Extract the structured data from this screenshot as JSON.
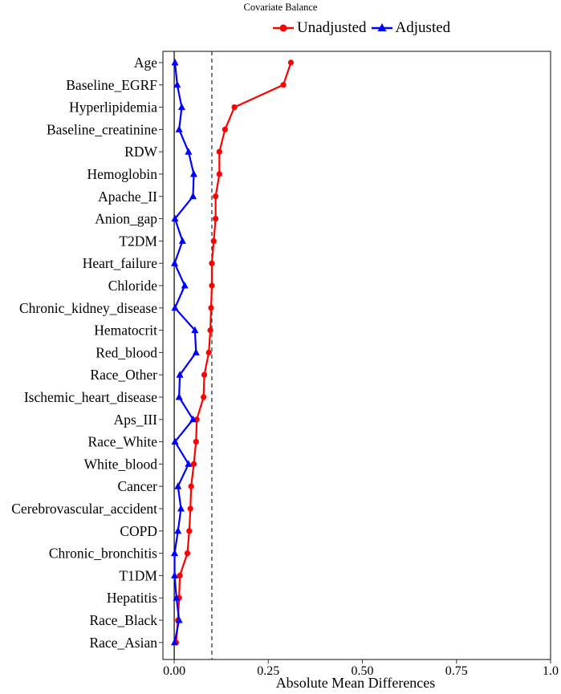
{
  "chart_data": {
    "type": "line",
    "title": "Covariate Balance",
    "xlabel": "Absolute Mean Differences",
    "ylabel": "",
    "xlim": [
      -0.03,
      1.0
    ],
    "xticks": [
      "0.00",
      "0.25",
      "0.50",
      "0.75",
      "1.0"
    ],
    "xtick_values": [
      0,
      0.25,
      0.5,
      0.75,
      1.0
    ],
    "threshold": 0.1,
    "zero_line": 0,
    "legend_position": "top",
    "grid": false,
    "categories": [
      "Age",
      "Baseline_EGRF",
      "Hyperlipidemia",
      "Baseline_creatinine",
      "RDW",
      "Hemoglobin",
      "Apache_II",
      "Anion_gap",
      "T2DM",
      "Heart_failure",
      "Chloride",
      "Chronic_kidney_disease",
      "Hematocrit",
      "Red_blood",
      "Race_Other",
      "Ischemic_heart_disease",
      "Aps_III",
      "Race_White",
      "White_blood",
      "Cancer",
      "Cerebrovascular_accident",
      "COPD",
      "Chronic_bronchitis",
      "T1DM",
      "Hepatitis",
      "Race_Black",
      "Race_Asian"
    ],
    "series": [
      {
        "name": "Unadjusted",
        "color": "#ff0000",
        "marker": "circle",
        "values": [
          0.31,
          0.29,
          0.16,
          0.135,
          0.12,
          0.12,
          0.11,
          0.11,
          0.105,
          0.1,
          0.1,
          0.098,
          0.096,
          0.092,
          0.08,
          0.078,
          0.06,
          0.058,
          0.052,
          0.045,
          0.043,
          0.04,
          0.035,
          0.015,
          0.013,
          0.01,
          0.005
        ]
      },
      {
        "name": "Adjusted",
        "color": "#0000ff",
        "marker": "triangle",
        "values": [
          0.002,
          0.008,
          0.02,
          0.013,
          0.038,
          0.052,
          0.05,
          0.002,
          0.022,
          0.001,
          0.028,
          0.002,
          0.055,
          0.058,
          0.015,
          0.013,
          0.05,
          0.002,
          0.038,
          0.01,
          0.018,
          0.01,
          0.001,
          0.001,
          0.006,
          0.013,
          0.001
        ]
      }
    ]
  }
}
